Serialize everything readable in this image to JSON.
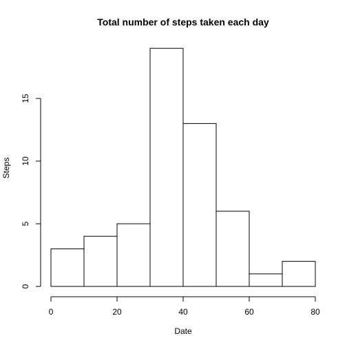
{
  "chart_data": {
    "type": "bar",
    "subtype": "histogram",
    "title": "Total number of steps taken each day",
    "xlabel": "Date",
    "ylabel": "Steps",
    "bins": [
      {
        "start": 0,
        "end": 10,
        "value": 3
      },
      {
        "start": 10,
        "end": 20,
        "value": 4
      },
      {
        "start": 20,
        "end": 30,
        "value": 5
      },
      {
        "start": 30,
        "end": 40,
        "value": 19
      },
      {
        "start": 40,
        "end": 50,
        "value": 13
      },
      {
        "start": 50,
        "end": 60,
        "value": 6
      },
      {
        "start": 60,
        "end": 70,
        "value": 1
      },
      {
        "start": 70,
        "end": 80,
        "value": 2
      }
    ],
    "xlim": [
      0,
      80
    ],
    "ylim": [
      0,
      20
    ],
    "xticks": [
      0,
      20,
      40,
      60,
      80
    ],
    "yticks": [
      0,
      5,
      10,
      15
    ],
    "grid": false,
    "legend": "none"
  }
}
